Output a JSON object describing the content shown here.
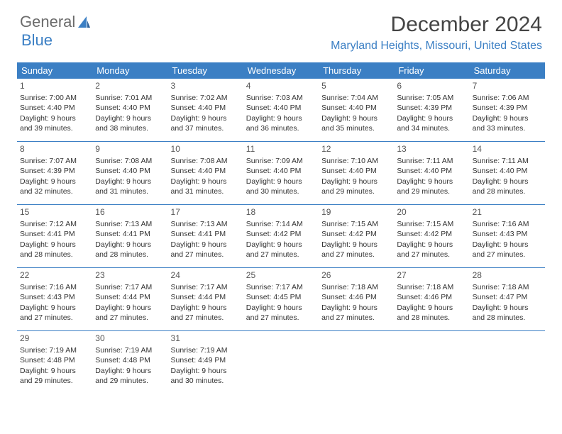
{
  "logo": {
    "text_general": "General",
    "text_blue": "Blue"
  },
  "header": {
    "month_title": "December 2024",
    "location": "Maryland Heights, Missouri, United States"
  },
  "colors": {
    "header_bg": "#3b7fc4",
    "header_text": "#ffffff",
    "accent": "#3b7fc4",
    "body_text": "#333333",
    "logo_gray": "#6b6b6b"
  },
  "day_names": [
    "Sunday",
    "Monday",
    "Tuesday",
    "Wednesday",
    "Thursday",
    "Friday",
    "Saturday"
  ],
  "weeks": [
    [
      {
        "num": "1",
        "sunrise": "7:00 AM",
        "sunset": "4:40 PM",
        "daylight": "9 hours and 39 minutes."
      },
      {
        "num": "2",
        "sunrise": "7:01 AM",
        "sunset": "4:40 PM",
        "daylight": "9 hours and 38 minutes."
      },
      {
        "num": "3",
        "sunrise": "7:02 AM",
        "sunset": "4:40 PM",
        "daylight": "9 hours and 37 minutes."
      },
      {
        "num": "4",
        "sunrise": "7:03 AM",
        "sunset": "4:40 PM",
        "daylight": "9 hours and 36 minutes."
      },
      {
        "num": "5",
        "sunrise": "7:04 AM",
        "sunset": "4:40 PM",
        "daylight": "9 hours and 35 minutes."
      },
      {
        "num": "6",
        "sunrise": "7:05 AM",
        "sunset": "4:39 PM",
        "daylight": "9 hours and 34 minutes."
      },
      {
        "num": "7",
        "sunrise": "7:06 AM",
        "sunset": "4:39 PM",
        "daylight": "9 hours and 33 minutes."
      }
    ],
    [
      {
        "num": "8",
        "sunrise": "7:07 AM",
        "sunset": "4:39 PM",
        "daylight": "9 hours and 32 minutes."
      },
      {
        "num": "9",
        "sunrise": "7:08 AM",
        "sunset": "4:40 PM",
        "daylight": "9 hours and 31 minutes."
      },
      {
        "num": "10",
        "sunrise": "7:08 AM",
        "sunset": "4:40 PM",
        "daylight": "9 hours and 31 minutes."
      },
      {
        "num": "11",
        "sunrise": "7:09 AM",
        "sunset": "4:40 PM",
        "daylight": "9 hours and 30 minutes."
      },
      {
        "num": "12",
        "sunrise": "7:10 AM",
        "sunset": "4:40 PM",
        "daylight": "9 hours and 29 minutes."
      },
      {
        "num": "13",
        "sunrise": "7:11 AM",
        "sunset": "4:40 PM",
        "daylight": "9 hours and 29 minutes."
      },
      {
        "num": "14",
        "sunrise": "7:11 AM",
        "sunset": "4:40 PM",
        "daylight": "9 hours and 28 minutes."
      }
    ],
    [
      {
        "num": "15",
        "sunrise": "7:12 AM",
        "sunset": "4:41 PM",
        "daylight": "9 hours and 28 minutes."
      },
      {
        "num": "16",
        "sunrise": "7:13 AM",
        "sunset": "4:41 PM",
        "daylight": "9 hours and 28 minutes."
      },
      {
        "num": "17",
        "sunrise": "7:13 AM",
        "sunset": "4:41 PM",
        "daylight": "9 hours and 27 minutes."
      },
      {
        "num": "18",
        "sunrise": "7:14 AM",
        "sunset": "4:42 PM",
        "daylight": "9 hours and 27 minutes."
      },
      {
        "num": "19",
        "sunrise": "7:15 AM",
        "sunset": "4:42 PM",
        "daylight": "9 hours and 27 minutes."
      },
      {
        "num": "20",
        "sunrise": "7:15 AM",
        "sunset": "4:42 PM",
        "daylight": "9 hours and 27 minutes."
      },
      {
        "num": "21",
        "sunrise": "7:16 AM",
        "sunset": "4:43 PM",
        "daylight": "9 hours and 27 minutes."
      }
    ],
    [
      {
        "num": "22",
        "sunrise": "7:16 AM",
        "sunset": "4:43 PM",
        "daylight": "9 hours and 27 minutes."
      },
      {
        "num": "23",
        "sunrise": "7:17 AM",
        "sunset": "4:44 PM",
        "daylight": "9 hours and 27 minutes."
      },
      {
        "num": "24",
        "sunrise": "7:17 AM",
        "sunset": "4:44 PM",
        "daylight": "9 hours and 27 minutes."
      },
      {
        "num": "25",
        "sunrise": "7:17 AM",
        "sunset": "4:45 PM",
        "daylight": "9 hours and 27 minutes."
      },
      {
        "num": "26",
        "sunrise": "7:18 AM",
        "sunset": "4:46 PM",
        "daylight": "9 hours and 27 minutes."
      },
      {
        "num": "27",
        "sunrise": "7:18 AM",
        "sunset": "4:46 PM",
        "daylight": "9 hours and 28 minutes."
      },
      {
        "num": "28",
        "sunrise": "7:18 AM",
        "sunset": "4:47 PM",
        "daylight": "9 hours and 28 minutes."
      }
    ],
    [
      {
        "num": "29",
        "sunrise": "7:19 AM",
        "sunset": "4:48 PM",
        "daylight": "9 hours and 29 minutes."
      },
      {
        "num": "30",
        "sunrise": "7:19 AM",
        "sunset": "4:48 PM",
        "daylight": "9 hours and 29 minutes."
      },
      {
        "num": "31",
        "sunrise": "7:19 AM",
        "sunset": "4:49 PM",
        "daylight": "9 hours and 30 minutes."
      },
      null,
      null,
      null,
      null
    ]
  ],
  "labels": {
    "sunrise_prefix": "Sunrise: ",
    "sunset_prefix": "Sunset: ",
    "daylight_prefix": "Daylight: "
  }
}
